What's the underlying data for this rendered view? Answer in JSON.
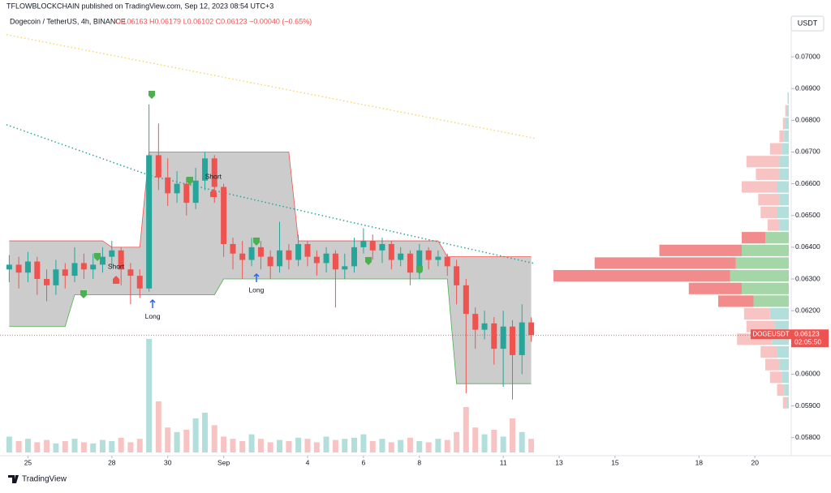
{
  "header": {
    "published": "TFLOWBLOCKCHAIN published on TradingView.com, Sep 12, 2023 08:54 UTC+3",
    "symbol": "Dogecoin / TetherUS, 4h, BINANCE",
    "ohlc": "O0.06163 H0.06179 L0.06102 C0.06123 −0.00040 (−0.65%)",
    "currency": "USDT"
  },
  "footer": {
    "brand": "TradingView"
  },
  "chart_data": {
    "type": "candlestick",
    "up_color": "#26a69a",
    "down_color": "#ef5350",
    "xlim": [
      24.0,
      52.3
    ],
    "xticks": [
      25,
      28,
      30,
      {
        "value": 32,
        "label": "Sep"
      },
      {
        "value": 35,
        "label": "4"
      },
      {
        "value": 37,
        "label": "6"
      },
      {
        "value": 39,
        "label": "8"
      },
      {
        "value": 42,
        "label": "11"
      },
      {
        "value": 44,
        "label": "13"
      },
      {
        "value": 46,
        "label": "15"
      },
      {
        "value": 49,
        "label": "18"
      },
      {
        "value": 51,
        "label": "20"
      }
    ],
    "ylim": [
      0.05743,
      0.07082
    ],
    "yticks": [
      {
        "value": 0.058,
        "label": "0.05800"
      },
      {
        "value": 0.059,
        "label": "0.05900"
      },
      {
        "value": 0.06,
        "label": "0.06000"
      },
      {
        "value": 0.061,
        "label": "0.06100"
      },
      {
        "value": 0.062,
        "label": "0.06200"
      },
      {
        "value": 0.063,
        "label": "0.06300"
      },
      {
        "value": 0.064,
        "label": "0.06400"
      },
      {
        "value": 0.065,
        "label": "0.06500"
      },
      {
        "value": 0.066,
        "label": "0.06600"
      },
      {
        "value": 0.067,
        "label": "0.06700"
      },
      {
        "value": 0.068,
        "label": "0.06800"
      },
      {
        "value": 0.069,
        "label": "0.06900"
      },
      {
        "value": 0.07,
        "label": "0.07000"
      }
    ],
    "x": [
      24.33,
      24.67,
      25,
      25.33,
      25.67,
      26,
      26.33,
      26.67,
      27,
      27.33,
      27.67,
      28,
      28.33,
      28.67,
      29,
      29.33,
      29.67,
      30,
      30.33,
      30.67,
      31,
      31.33,
      31.67,
      32,
      32.33,
      32.67,
      33,
      33.33,
      33.67,
      34,
      34.33,
      34.67,
      35,
      35.33,
      35.67,
      36,
      36.33,
      36.67,
      37,
      37.33,
      37.67,
      38,
      38.33,
      38.67,
      39,
      39.33,
      39.67,
      40,
      40.33,
      40.67,
      41,
      41.33,
      41.67,
      42,
      42.33,
      42.67,
      43
    ],
    "open": [
      0.0633,
      0.06345,
      0.0632,
      0.06355,
      0.063,
      0.0628,
      0.0633,
      0.0631,
      0.0635,
      0.0633,
      0.06345,
      0.0637,
      0.0639,
      0.0633,
      0.0631,
      0.0627,
      0.0669,
      0.0662,
      0.0657,
      0.066,
      0.0654,
      0.0661,
      0.0668,
      0.0659,
      0.0641,
      0.0638,
      0.0636,
      0.064,
      0.0637,
      0.0634,
      0.0639,
      0.0636,
      0.0641,
      0.0637,
      0.0635,
      0.0638,
      0.0633,
      0.0634,
      0.064,
      0.0642,
      0.0639,
      0.0641,
      0.0636,
      0.0638,
      0.0632,
      0.0639,
      0.0636,
      0.0637,
      0.0634,
      0.0628,
      0.0619,
      0.0614,
      0.0616,
      0.0608,
      0.0615,
      0.0606,
      0.06163
    ],
    "high": [
      0.06375,
      0.0637,
      0.06385,
      0.0637,
      0.0633,
      0.0636,
      0.0635,
      0.064,
      0.0638,
      0.0638,
      0.064,
      0.0642,
      0.064,
      0.0635,
      0.0633,
      0.0685,
      0.0679,
      0.0668,
      0.0664,
      0.0662,
      0.0665,
      0.067,
      0.0669,
      0.066,
      0.0643,
      0.0642,
      0.0643,
      0.0642,
      0.0639,
      0.0648,
      0.0641,
      0.0644,
      0.0642,
      0.0639,
      0.064,
      0.0639,
      0.0638,
      0.0643,
      0.0646,
      0.0644,
      0.0643,
      0.0642,
      0.064,
      0.0639,
      0.0641,
      0.064,
      0.0639,
      0.0638,
      0.0636,
      0.063,
      0.0621,
      0.062,
      0.0618,
      0.062,
      0.0617,
      0.0622,
      0.06179
    ],
    "low": [
      0.0629,
      0.0627,
      0.0629,
      0.0625,
      0.0623,
      0.0625,
      0.0627,
      0.0629,
      0.063,
      0.063,
      0.0632,
      0.0634,
      0.0628,
      0.0622,
      0.0624,
      0.0626,
      0.0658,
      0.0653,
      0.0654,
      0.065,
      0.0652,
      0.0658,
      0.0654,
      0.0637,
      0.0633,
      0.063,
      0.0634,
      0.0633,
      0.063,
      0.0632,
      0.0633,
      0.0634,
      0.0634,
      0.0631,
      0.0632,
      0.0621,
      0.063,
      0.0632,
      0.0638,
      0.0636,
      0.0635,
      0.0633,
      0.0634,
      0.0628,
      0.063,
      0.0633,
      0.0634,
      0.0631,
      0.0622,
      0.0594,
      0.0608,
      0.0611,
      0.0603,
      0.0596,
      0.0592,
      0.06,
      0.06102
    ],
    "close": [
      0.06345,
      0.0632,
      0.06355,
      0.063,
      0.0628,
      0.0633,
      0.0631,
      0.0635,
      0.0633,
      0.06345,
      0.0637,
      0.0639,
      0.0633,
      0.0631,
      0.0627,
      0.0669,
      0.0662,
      0.0657,
      0.066,
      0.0654,
      0.0661,
      0.0668,
      0.0659,
      0.0641,
      0.0638,
      0.0636,
      0.064,
      0.0637,
      0.0634,
      0.0639,
      0.0636,
      0.0641,
      0.0637,
      0.0635,
      0.0638,
      0.0633,
      0.0634,
      0.064,
      0.0642,
      0.0639,
      0.0641,
      0.0636,
      0.0638,
      0.0632,
      0.0639,
      0.0636,
      0.0637,
      0.0634,
      0.0628,
      0.0619,
      0.0614,
      0.0616,
      0.0608,
      0.0615,
      0.0606,
      0.06163,
      0.06123
    ],
    "volume": [
      14,
      10,
      12,
      9,
      11,
      8,
      10,
      12,
      9,
      8,
      11,
      10,
      13,
      9,
      12,
      100,
      45,
      22,
      18,
      20,
      30,
      35,
      24,
      14,
      12,
      10,
      16,
      12,
      9,
      11,
      10,
      13,
      12,
      9,
      14,
      11,
      12,
      13,
      16,
      10,
      12,
      9,
      11,
      13,
      10,
      9,
      12,
      11,
      18,
      40,
      22,
      16,
      20,
      14,
      30,
      18,
      12
    ],
    "band": {
      "color": "#c7c7c7",
      "upper_color": "#ef5350",
      "lower_color": "#4caf50",
      "upper": [
        0.0642,
        0.0642,
        0.0642,
        0.0642,
        0.0642,
        0.0642,
        0.0642,
        0.0642,
        0.0642,
        0.0642,
        0.0642,
        0.064,
        0.064,
        0.064,
        0.064,
        0.067,
        0.067,
        0.067,
        0.067,
        0.067,
        0.067,
        0.067,
        0.067,
        0.067,
        0.067,
        0.067,
        0.067,
        0.067,
        0.067,
        0.067,
        0.067,
        0.0642,
        0.0642,
        0.0642,
        0.0642,
        0.0642,
        0.0642,
        0.0642,
        0.0642,
        0.0642,
        0.0642,
        0.0642,
        0.0642,
        0.0642,
        0.0642,
        0.0642,
        0.0642,
        0.0637,
        0.0637,
        0.0637,
        0.0637,
        0.0637,
        0.0637,
        0.0637,
        0.0637,
        0.0637,
        0.0637
      ],
      "lower": [
        0.0615,
        0.0615,
        0.0615,
        0.0615,
        0.0615,
        0.0615,
        0.0615,
        0.0625,
        0.0625,
        0.0625,
        0.0625,
        0.0625,
        0.0625,
        0.0625,
        0.0625,
        0.0625,
        0.0625,
        0.0625,
        0.0625,
        0.0625,
        0.0625,
        0.0625,
        0.0625,
        0.063,
        0.063,
        0.063,
        0.063,
        0.063,
        0.063,
        0.063,
        0.063,
        0.063,
        0.063,
        0.063,
        0.063,
        0.063,
        0.063,
        0.063,
        0.063,
        0.063,
        0.063,
        0.063,
        0.063,
        0.063,
        0.063,
        0.063,
        0.063,
        0.063,
        0.0597,
        0.0597,
        0.0597,
        0.0597,
        0.0597,
        0.0597,
        0.0597,
        0.0597,
        0.0597
      ]
    },
    "ma": [
      {
        "color": "#f5d76e",
        "x": [
          24.23,
          43.2
        ],
        "values": [
          0.0707,
          0.06742
        ]
      },
      {
        "color": "#26a69a",
        "x": [
          24.23,
          29.4,
          36.5,
          43.15
        ],
        "values": [
          0.06786,
          0.06625,
          0.0648,
          0.06348
        ]
      }
    ],
    "annotations": [
      {
        "text": "Short",
        "x": 28.15,
        "y": 0.06338
      },
      {
        "text": "Short",
        "x": 31.63,
        "y": 0.06621
      },
      {
        "text": "Long",
        "x": 29.46,
        "y": 0.06181
      },
      {
        "text": "Long",
        "x": 33.17,
        "y": 0.06264
      }
    ],
    "last_price": {
      "name": "DOGEUSDT",
      "value": 0.06123,
      "countdown": "02:05:50",
      "color": "#ef5350"
    },
    "profile": {
      "value_area": [
        0.0622,
        0.0645
      ],
      "prices": [
        0.0591,
        0.0595,
        0.0599,
        0.0603,
        0.0607,
        0.0611,
        0.0615,
        0.0619,
        0.0623,
        0.0627,
        0.0631,
        0.0635,
        0.0639,
        0.0643,
        0.0647,
        0.0651,
        0.0655,
        0.0659,
        0.0663,
        0.0667,
        0.0671,
        0.0675,
        0.0679,
        0.0683,
        0.0687
      ],
      "buy": [
        2,
        4,
        6,
        8,
        10,
        14,
        12,
        16,
        30,
        40,
        50,
        45,
        40,
        20,
        8,
        10,
        8,
        10,
        8,
        8,
        6,
        4,
        3,
        2,
        1
      ],
      "sell": [
        3,
        6,
        10,
        12,
        14,
        30,
        24,
        22,
        30,
        45,
        150,
        120,
        70,
        20,
        10,
        14,
        18,
        30,
        20,
        28,
        10,
        4,
        2,
        1,
        0
      ]
    }
  }
}
